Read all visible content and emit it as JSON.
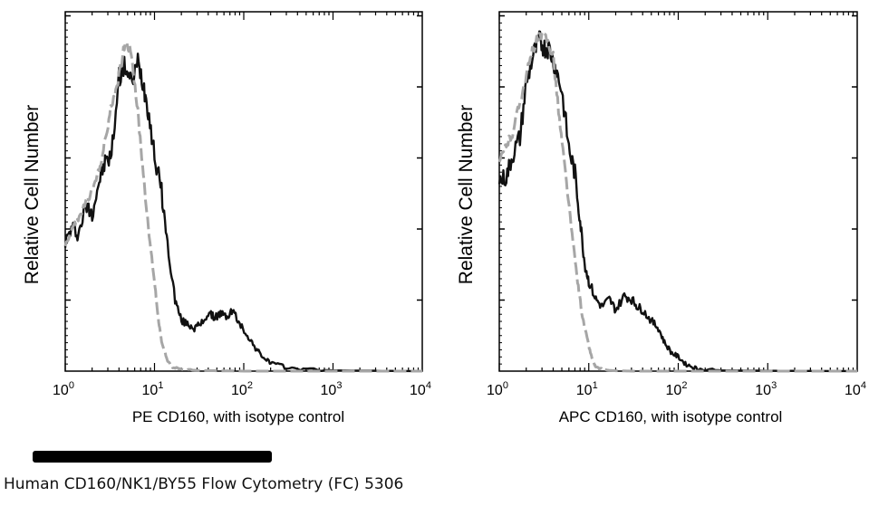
{
  "caption": "Human CD160/NK1/BY55 Flow Cytometry (FC) 5306",
  "colors": {
    "sample": "#111111",
    "isotype": "#a6a6a6",
    "axis": "#000000"
  },
  "chart_data": [
    {
      "type": "line",
      "xscale": "log",
      "xlim": [
        1,
        10000
      ],
      "ylim": [
        0,
        100
      ],
      "xlabel": "PE CD160, with isotype control",
      "ylabel": "Relative Cell Number",
      "xticks": [
        1,
        10,
        100,
        1000,
        10000
      ],
      "xtick_labels": [
        {
          "base": "10",
          "exp": "0"
        },
        {
          "base": "10",
          "exp": "1"
        },
        {
          "base": "10",
          "exp": "2"
        },
        {
          "base": "10",
          "exp": "3"
        },
        {
          "base": "10",
          "exp": "4"
        }
      ],
      "grid": false,
      "series": [
        {
          "role": "sample",
          "style": "solid",
          "x": [
            1.0,
            1.2,
            1.4,
            1.7,
            2.0,
            2.4,
            2.8,
            3.3,
            4.0,
            4.7,
            5.5,
            6.5,
            7.5,
            8.5,
            10,
            12,
            14,
            17,
            20,
            24,
            28,
            33,
            40,
            47,
            55,
            65,
            75,
            90,
            110,
            130,
            150,
            180,
            220,
            300,
            500,
            1000,
            3000,
            10000
          ],
          "y": [
            36,
            40,
            38,
            46,
            44,
            53,
            58,
            60,
            82,
            85,
            80,
            86,
            80,
            73,
            60,
            50,
            35,
            20,
            14,
            13,
            12,
            13,
            16,
            15,
            16,
            15,
            17,
            13,
            10,
            7,
            5,
            3,
            2,
            1,
            0.5,
            0.2,
            0.1,
            0
          ]
        },
        {
          "role": "isotype",
          "style": "dashed",
          "x": [
            1.0,
            1.2,
            1.4,
            1.7,
            2.0,
            2.4,
            2.8,
            3.3,
            4.0,
            4.7,
            5.5,
            6.5,
            7.5,
            8.5,
            10,
            11,
            12,
            14,
            16,
            20,
            30,
            50,
            100,
            1000,
            10000
          ],
          "y": [
            35,
            40,
            42,
            47,
            50,
            56,
            64,
            74,
            82,
            92,
            89,
            72,
            55,
            40,
            25,
            15,
            8,
            3,
            1,
            0.5,
            0.2,
            0.1,
            0,
            0,
            0
          ]
        }
      ]
    },
    {
      "type": "line",
      "xscale": "log",
      "xlim": [
        1,
        10000
      ],
      "ylim": [
        0,
        100
      ],
      "xlabel": "APC CD160, with isotype control",
      "ylabel": "Relative Cell Number",
      "xticks": [
        1,
        10,
        100,
        1000,
        10000
      ],
      "xtick_labels": [
        {
          "base": "10",
          "exp": "0"
        },
        {
          "base": "10",
          "exp": "1"
        },
        {
          "base": "10",
          "exp": "2"
        },
        {
          "base": "10",
          "exp": "3"
        },
        {
          "base": "10",
          "exp": "4"
        }
      ],
      "grid": false,
      "series": [
        {
          "role": "sample",
          "style": "solid",
          "x": [
            1.0,
            1.2,
            1.4,
            1.7,
            2.0,
            2.4,
            2.8,
            3.2,
            3.6,
            4.2,
            5.0,
            6.0,
            7.0,
            8.0,
            9.0,
            10,
            12,
            14,
            17,
            20,
            25,
            30,
            35,
            40,
            50,
            60,
            70,
            85,
            100,
            120,
            150,
            180,
            300,
            1000,
            10000
          ],
          "y": [
            53,
            54,
            60,
            65,
            80,
            88,
            92,
            90,
            90,
            85,
            78,
            62,
            55,
            42,
            30,
            25,
            20,
            18,
            20,
            17,
            21,
            20,
            18,
            17,
            14,
            12,
            8,
            5,
            4,
            2,
            1,
            0.5,
            0.2,
            0.1,
            0
          ]
        },
        {
          "role": "isotype",
          "style": "dashed",
          "x": [
            1.0,
            1.2,
            1.4,
            1.7,
            2.0,
            2.4,
            2.8,
            3.3,
            4.0,
            4.7,
            5.5,
            6.5,
            7.5,
            8.5,
            10,
            11,
            12,
            14,
            17,
            20,
            30,
            100,
            1000,
            10000
          ],
          "y": [
            58,
            63,
            66,
            75,
            82,
            90,
            93,
            93,
            88,
            70,
            55,
            38,
            25,
            15,
            7,
            3,
            1,
            0.5,
            0.2,
            0.1,
            0,
            0,
            0,
            0
          ]
        }
      ]
    }
  ]
}
